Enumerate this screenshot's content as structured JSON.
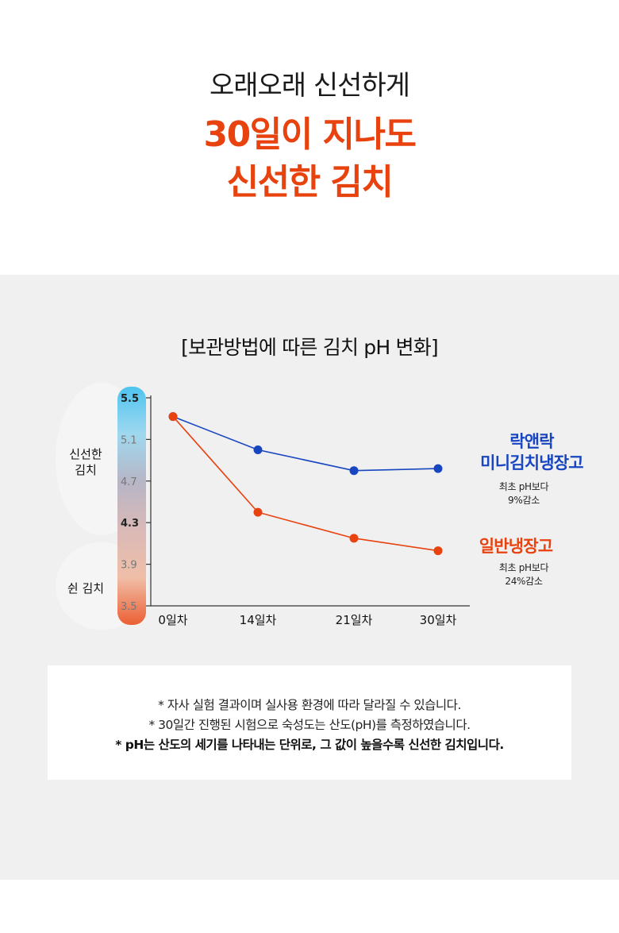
{
  "hero": {
    "subtitle": "오래오래 신선하게",
    "headline_line1": "30일이 지나도",
    "headline_line2": "신선한 김치"
  },
  "chart_data": {
    "type": "line",
    "title": "[보관방법에 따른 김치 pH 변화]",
    "categories": [
      "0일차",
      "14일차",
      "21일차",
      "30일차"
    ],
    "y_ticks": [
      "5.5",
      "5.1",
      "4.7",
      "4.3",
      "3.9",
      "3.5"
    ],
    "ylim": [
      3.5,
      5.5
    ],
    "grid": false,
    "zones": [
      "신선한\n김치",
      "쉰 김치"
    ],
    "series": [
      {
        "name": "락앤락\n미니김치냉장고",
        "values": [
          5.32,
          5.0,
          4.8,
          4.82
        ],
        "color": "#1846c0",
        "note": "최초 pH보다\n9%감소"
      },
      {
        "name": "일반냉장고",
        "values": [
          5.32,
          4.4,
          4.15,
          4.03
        ],
        "color": "#e8420f",
        "note": "최초 pH보다\n24%감소"
      }
    ],
    "gradient_colors": [
      "#4fc3f0",
      "#9fd8ef",
      "#b7b6c6",
      "#d9b9b7",
      "#f0bfa8",
      "#ec5f33"
    ]
  },
  "disclaimer": {
    "line1": "* 자사 실험 결과이며 실사용 환경에 따라 달라질 수 있습니다.",
    "line2": "* 30일간 진행된 시험으로 숙성도는 산도(pH)를 측정하였습니다.",
    "line3": "* pH는 산도의 세기를 나타내는 단위로, 그 값이 높을수록 신선한 김치입니다."
  }
}
